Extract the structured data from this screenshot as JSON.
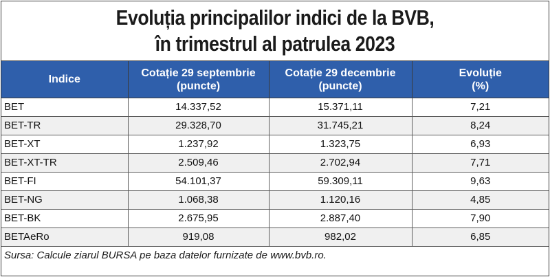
{
  "title": {
    "line1": "Evoluția principalilor indici de la BVB,",
    "line2": "în trimestrul al patrulea 2023"
  },
  "table": {
    "headers": [
      {
        "line1": "Indice",
        "line2": ""
      },
      {
        "line1": "Cotație 29 septembrie",
        "line2": "(puncte)"
      },
      {
        "line1": "Cotație 29 decembrie",
        "line2": "(puncte)"
      },
      {
        "line1": "Evoluție",
        "line2": "(%)"
      }
    ],
    "rows": [
      [
        "BET",
        "14.337,52",
        "15.371,11",
        "7,21"
      ],
      [
        "BET-TR",
        "29.328,70",
        "31.745,21",
        "8,24"
      ],
      [
        "BET-XT",
        "1.237,92",
        "1.323,75",
        "6,93"
      ],
      [
        "BET-XT-TR",
        "2.509,46",
        "2.702,94",
        "7,71"
      ],
      [
        "BET-FI",
        "54.101,37",
        "59.309,11",
        "9,63"
      ],
      [
        "BET-NG",
        "1.068,38",
        "1.120,16",
        "4,85"
      ],
      [
        "BET-BK",
        "2.675,95",
        "2.887,40",
        "7,90"
      ],
      [
        "BETAeRo",
        "919,08",
        "982,02",
        "6,85"
      ]
    ]
  },
  "source": "Sursa: Calcule ziarul BURSA pe baza datelor furnizate de www.bvb.ro.",
  "colors": {
    "header_bg": "#2f5fab",
    "header_text": "#ffffff",
    "stripe": "#f0f0f0"
  }
}
